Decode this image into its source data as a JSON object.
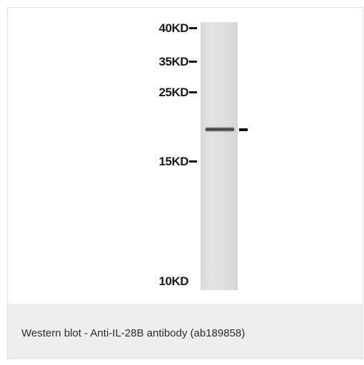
{
  "blot": {
    "markers": [
      {
        "label": "40KD",
        "tick": true
      },
      {
        "label": "35KD",
        "tick": true
      },
      {
        "label": "25KD",
        "tick": true
      },
      {
        "label": "15KD",
        "tick": true
      },
      {
        "label": "10KD",
        "tick": false
      }
    ]
  },
  "caption": "Western blot - Anti-IL-28B antibody (ab189858)"
}
